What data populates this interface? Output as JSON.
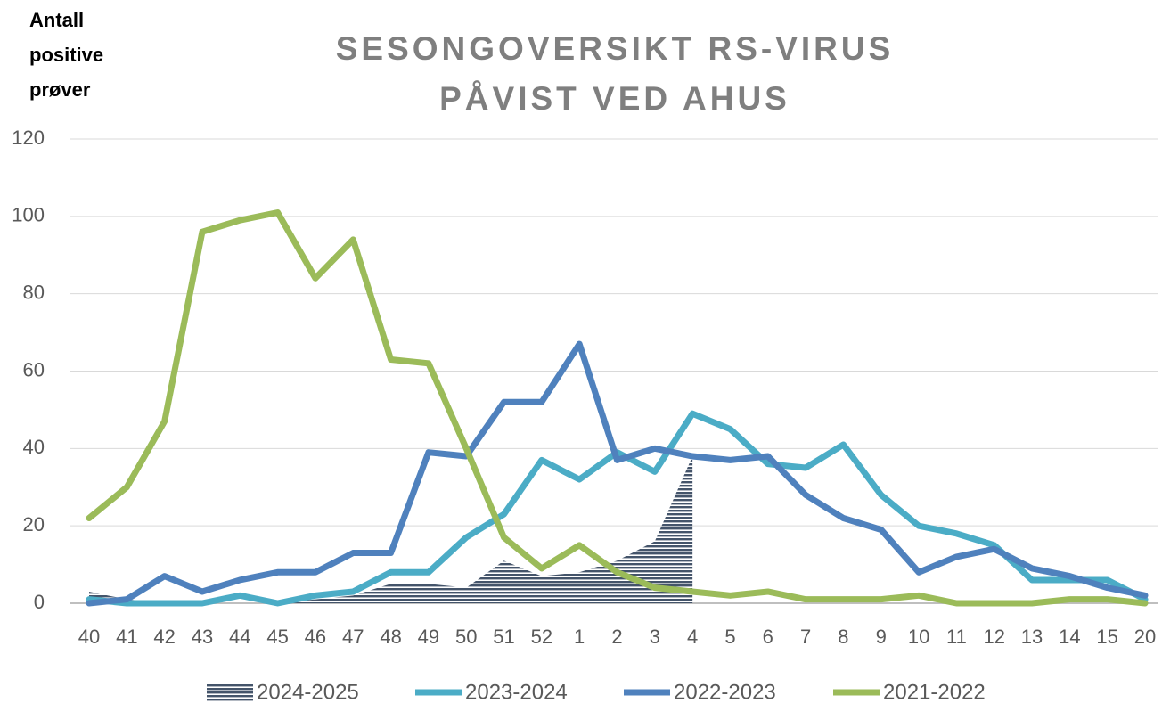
{
  "chart_data": {
    "type": "line",
    "title": [
      "SESONGOVERSIKT RS-VIRUS",
      "PÅVIST VED AHUS"
    ],
    "y_label": [
      "Antall",
      "positive",
      "prøver"
    ],
    "categories": [
      "40",
      "41",
      "42",
      "43",
      "44",
      "45",
      "46",
      "47",
      "48",
      "49",
      "50",
      "51",
      "52",
      "1",
      "2",
      "3",
      "4",
      "5",
      "6",
      "7",
      "8",
      "9",
      "10",
      "11",
      "12",
      "13",
      "14",
      "15",
      "20"
    ],
    "ylim": [
      0,
      120
    ],
    "yticks": [
      0,
      20,
      40,
      60,
      80,
      100,
      120
    ],
    "grid": true,
    "legend": "bottom",
    "series": [
      {
        "name": "2024-2025",
        "type": "area",
        "color": "#44546a",
        "values": [
          3,
          1,
          0,
          0,
          0,
          0,
          1,
          2,
          5,
          5,
          4,
          11,
          7,
          8,
          11,
          16,
          38,
          null,
          null,
          null,
          null,
          null,
          null,
          null,
          null,
          null,
          null,
          null,
          null
        ]
      },
      {
        "name": "2023-2024",
        "color": "#4bacc6",
        "values": [
          1,
          0,
          0,
          0,
          2,
          0,
          2,
          3,
          8,
          8,
          17,
          23,
          37,
          32,
          39,
          34,
          49,
          45,
          36,
          35,
          41,
          28,
          20,
          18,
          15,
          6,
          6,
          6,
          1
        ]
      },
      {
        "name": "2022-2023",
        "color": "#4f81bd",
        "values": [
          0,
          1,
          7,
          3,
          6,
          8,
          8,
          13,
          13,
          39,
          38,
          52,
          52,
          67,
          37,
          40,
          38,
          37,
          38,
          28,
          22,
          19,
          8,
          12,
          14,
          9,
          7,
          4,
          2
        ]
      },
      {
        "name": "2021-2022",
        "color": "#9bbb59",
        "values": [
          22,
          30,
          47,
          96,
          99,
          101,
          84,
          94,
          63,
          62,
          40,
          17,
          9,
          15,
          8,
          4,
          3,
          2,
          3,
          1,
          1,
          1,
          2,
          0,
          0,
          0,
          1,
          1,
          0
        ]
      }
    ]
  }
}
